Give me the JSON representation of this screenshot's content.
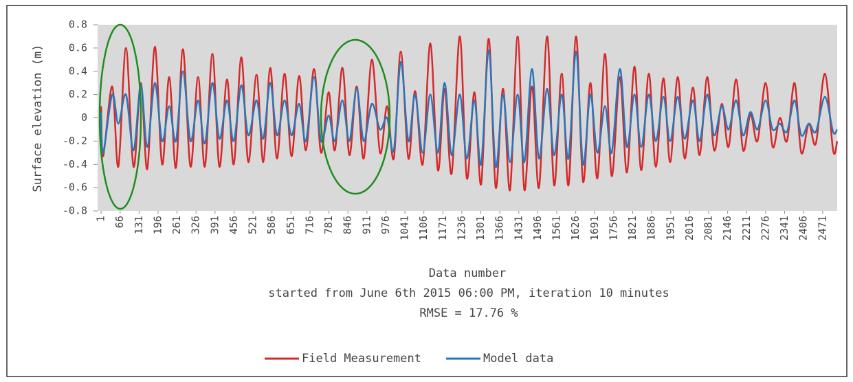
{
  "chart_data": {
    "type": "line",
    "ylabel": "Surface elevation (m)",
    "xlabel": "Data number",
    "subtitle": "started from June 6th 2015 06:00 PM, iteration 10 minutes",
    "annotation": "RMSE = 17.76 %",
    "xlim": [
      -11,
      2521
    ],
    "ylim": [
      -0.8,
      0.8
    ],
    "xticks": [
      1,
      66,
      131,
      196,
      261,
      326,
      391,
      456,
      521,
      586,
      651,
      716,
      781,
      846,
      911,
      976,
      1041,
      1106,
      1171,
      1236,
      1301,
      1366,
      1431,
      1496,
      1561,
      1626,
      1691,
      1756,
      1821,
      1886,
      1951,
      2016,
      2081,
      2146,
      2211,
      2276,
      2341,
      2406,
      2471
    ],
    "yticks": [
      0.8,
      0.6,
      0.4,
      0.2,
      0,
      -0.2,
      -0.4,
      -0.6,
      -0.8
    ],
    "legend": "bottom",
    "x": [
      1,
      8,
      39,
      60,
      86,
      112,
      137,
      159,
      185,
      210,
      234,
      257,
      281,
      307,
      333,
      356,
      382,
      406,
      432,
      455,
      481,
      505,
      533,
      556,
      580,
      603,
      629,
      653,
      679,
      702,
      730,
      754,
      780,
      801,
      827,
      851,
      876,
      900,
      928,
      956,
      980,
      1003,
      1027,
      1053,
      1076,
      1102,
      1128,
      1154,
      1177,
      1201,
      1229,
      1253,
      1279,
      1302,
      1328,
      1352,
      1377,
      1401,
      1427,
      1450,
      1476,
      1500,
      1528,
      1552,
      1578,
      1601,
      1627,
      1651,
      1676,
      1700,
      1726,
      1749,
      1777,
      1801,
      1827,
      1850,
      1876,
      1900,
      1926,
      1949,
      1975,
      1999,
      2027,
      2050,
      2076,
      2100,
      2126,
      2149,
      2175,
      2199,
      2224,
      2248,
      2276,
      2300,
      2325,
      2349,
      2375,
      2398,
      2424,
      2448,
      2479,
      2507,
      2521
    ],
    "series": [
      {
        "name": "Field Measurement",
        "color": "#d42a2a",
        "values": [
          0.1,
          -0.33,
          0.27,
          -0.42,
          0.6,
          -0.42,
          0.3,
          -0.44,
          0.61,
          -0.4,
          0.35,
          -0.43,
          0.59,
          -0.42,
          0.35,
          -0.42,
          0.55,
          -0.42,
          0.33,
          -0.4,
          0.52,
          -0.38,
          0.37,
          -0.38,
          0.43,
          -0.35,
          0.38,
          -0.33,
          0.36,
          -0.28,
          0.42,
          -0.3,
          0.22,
          -0.28,
          0.43,
          -0.32,
          0.27,
          -0.35,
          0.5,
          -0.3,
          0.1,
          -0.35,
          0.57,
          -0.35,
          0.23,
          -0.4,
          0.64,
          -0.45,
          0.25,
          -0.48,
          0.7,
          -0.52,
          0.22,
          -0.57,
          0.68,
          -0.6,
          0.25,
          -0.62,
          0.7,
          -0.62,
          0.27,
          -0.6,
          0.7,
          -0.58,
          0.38,
          -0.58,
          0.7,
          -0.55,
          0.3,
          -0.52,
          0.55,
          -0.5,
          0.35,
          -0.47,
          0.44,
          -0.45,
          0.38,
          -0.42,
          0.34,
          -0.38,
          0.35,
          -0.35,
          0.26,
          -0.32,
          0.35,
          -0.28,
          0.12,
          -0.25,
          0.33,
          -0.28,
          0.03,
          -0.2,
          0.3,
          -0.25,
          0.0,
          -0.2,
          0.3,
          -0.3,
          -0.05,
          -0.22,
          0.38,
          -0.28,
          -0.2
        ]
      },
      {
        "name": "Model data",
        "color": "#2e75b6",
        "values": [
          0.05,
          -0.3,
          0.2,
          -0.05,
          0.2,
          -0.28,
          0.28,
          -0.25,
          0.3,
          -0.2,
          0.1,
          -0.2,
          0.4,
          -0.2,
          0.15,
          -0.22,
          0.3,
          -0.18,
          0.15,
          -0.2,
          0.28,
          -0.15,
          0.15,
          -0.18,
          0.3,
          -0.15,
          0.15,
          -0.15,
          0.12,
          -0.2,
          0.35,
          -0.2,
          0.02,
          -0.2,
          0.15,
          -0.2,
          0.25,
          -0.2,
          0.12,
          -0.1,
          0.0,
          -0.28,
          0.48,
          -0.2,
          0.2,
          -0.3,
          0.2,
          -0.3,
          0.3,
          -0.32,
          0.2,
          -0.35,
          0.15,
          -0.4,
          0.58,
          -0.42,
          0.2,
          -0.38,
          0.2,
          -0.38,
          0.42,
          -0.35,
          0.25,
          -0.32,
          0.2,
          -0.35,
          0.57,
          -0.4,
          0.2,
          -0.3,
          0.1,
          -0.3,
          0.42,
          -0.25,
          0.2,
          -0.25,
          0.2,
          -0.2,
          0.18,
          -0.2,
          0.18,
          -0.18,
          0.15,
          -0.2,
          0.2,
          -0.15,
          0.1,
          -0.1,
          0.15,
          -0.15,
          0.05,
          -0.1,
          0.15,
          -0.1,
          -0.05,
          -0.12,
          0.15,
          -0.15,
          -0.05,
          -0.12,
          0.18,
          -0.12,
          -0.1
        ]
      }
    ]
  }
}
